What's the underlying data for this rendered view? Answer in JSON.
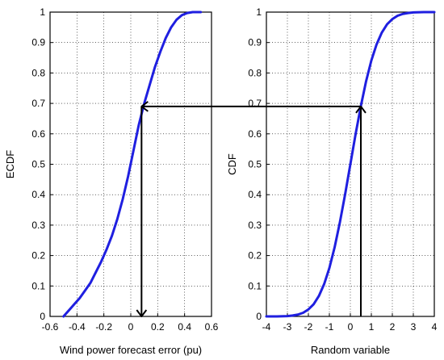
{
  "chart_data": [
    {
      "type": "line",
      "panel": "left",
      "xlabel": "Wind power forecast error (pu)",
      "ylabel": "ECDF",
      "xlim": [
        -0.6,
        0.6
      ],
      "ylim": [
        0,
        1
      ],
      "xticks": [
        "-0.6",
        "-0.4",
        "-0.2",
        "0",
        "0.2",
        "0.4",
        "0.6"
      ],
      "yticks": [
        "0",
        "0.1",
        "0.2",
        "0.3",
        "0.4",
        "0.5",
        "0.6",
        "0.7",
        "0.8",
        "0.9",
        "1"
      ],
      "grid": true,
      "series": [
        {
          "color": "#1f1fe0",
          "x": [
            -0.5,
            -0.48,
            -0.45,
            -0.42,
            -0.38,
            -0.34,
            -0.3,
            -0.26,
            -0.22,
            -0.18,
            -0.14,
            -0.1,
            -0.06,
            -0.02,
            0.02,
            0.06,
            0.1,
            0.14,
            0.18,
            0.22,
            0.26,
            0.3,
            0.34,
            0.38,
            0.42,
            0.46,
            0.5,
            0.52
          ],
          "y": [
            0.0,
            0.01,
            0.025,
            0.04,
            0.06,
            0.085,
            0.11,
            0.145,
            0.18,
            0.22,
            0.265,
            0.32,
            0.385,
            0.46,
            0.545,
            0.63,
            0.7,
            0.76,
            0.82,
            0.87,
            0.915,
            0.95,
            0.975,
            0.99,
            0.997,
            1.0,
            1.0,
            1.0
          ]
        }
      ]
    },
    {
      "type": "line",
      "panel": "right",
      "xlabel": "Random variable",
      "ylabel": "CDF",
      "xlim": [
        -4,
        4
      ],
      "ylim": [
        0,
        1
      ],
      "xticks": [
        "-4",
        "-3",
        "-2",
        "-1",
        "0",
        "1",
        "2",
        "3",
        "4"
      ],
      "yticks": [
        "0",
        "0.1",
        "0.2",
        "0.3",
        "0.4",
        "0.5",
        "0.6",
        "0.7",
        "0.8",
        "0.9",
        "1"
      ],
      "grid": true,
      "series": [
        {
          "color": "#1f1fe0",
          "x": [
            -4,
            -3.5,
            -3,
            -2.75,
            -2.5,
            -2.25,
            -2,
            -1.75,
            -1.5,
            -1.25,
            -1,
            -0.75,
            -0.5,
            -0.25,
            0,
            0.25,
            0.5,
            0.75,
            1,
            1.25,
            1.5,
            1.75,
            2,
            2.25,
            2.5,
            2.75,
            3,
            3.5,
            4
          ],
          "y": [
            0.0,
            0.0,
            0.001,
            0.003,
            0.006,
            0.012,
            0.023,
            0.04,
            0.067,
            0.106,
            0.159,
            0.227,
            0.309,
            0.401,
            0.5,
            0.599,
            0.691,
            0.773,
            0.841,
            0.894,
            0.933,
            0.96,
            0.977,
            0.988,
            0.994,
            0.997,
            0.999,
            1.0,
            1.0
          ]
        }
      ]
    }
  ],
  "mapping": {
    "probability": 0.69,
    "random_variable_value": 0.5,
    "forecast_error_value": 0.08,
    "arrow_color": "#000000"
  }
}
